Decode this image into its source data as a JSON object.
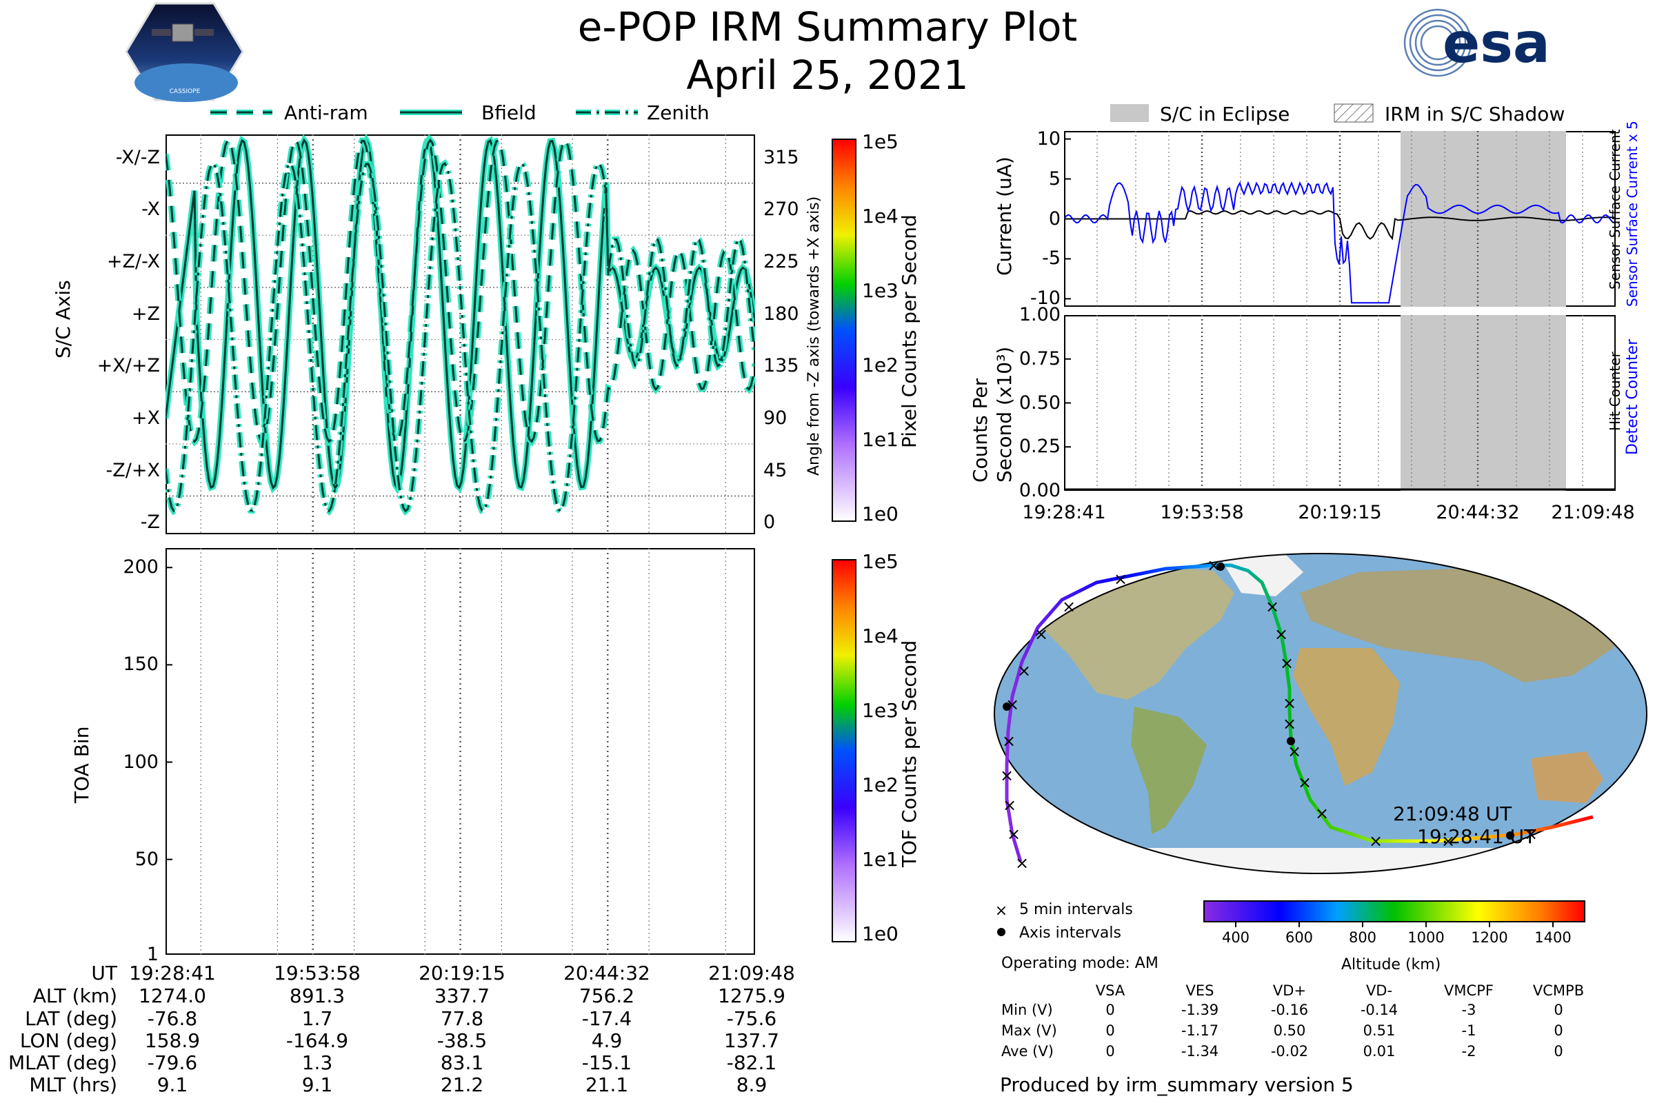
{
  "header": {
    "title": "e-POP IRM Summary Plot",
    "date": "April 25, 2021",
    "logo_badge_text": "CASSIOPE",
    "logo_esa": "esa"
  },
  "sc_axis_panel": {
    "legend": [
      {
        "label": "Anti-ram",
        "style": "dashed"
      },
      {
        "label": "Bfield",
        "style": "solid"
      },
      {
        "label": "Zenith",
        "style": "dashdot"
      }
    ],
    "ylabel": "S/C Axis",
    "y2label": "Angle from -Z axis (towards +X axis)",
    "left_ticks": [
      "-X/-Z",
      "-X",
      "+Z/-X",
      "+Z",
      "+X/+Z",
      "+X",
      "-Z/+X",
      "-Z"
    ],
    "right_ticks": [
      "315",
      "270",
      "225",
      "180",
      "135",
      "90",
      "45",
      "0"
    ],
    "colorbar_label": "Pixel Counts per Second",
    "colorbar_ticks": [
      "1e5",
      "1e4",
      "1e3",
      "1e2",
      "1e1",
      "1e0"
    ]
  },
  "toa_panel": {
    "ylabel": "TOA Bin",
    "yticks": [
      "200",
      "150",
      "100",
      "50",
      "1"
    ],
    "colorbar_label": "TOF Counts per Second",
    "colorbar_ticks": [
      "1e5",
      "1e4",
      "1e3",
      "1e2",
      "1e1",
      "1e0"
    ]
  },
  "ephemeris": {
    "row_labels": [
      "UT",
      "ALT (km)",
      "LAT (deg)",
      "LON (deg)",
      "MLAT (deg)",
      "MLT (hrs)"
    ],
    "columns": [
      [
        "19:28:41",
        "1274.0",
        "-76.8",
        "158.9",
        "-79.6",
        "9.1"
      ],
      [
        "19:53:58",
        "891.3",
        "1.7",
        "-164.9",
        "1.3",
        "9.1"
      ],
      [
        "20:19:15",
        "337.7",
        "77.8",
        "-38.5",
        "83.1",
        "21.2"
      ],
      [
        "20:44:32",
        "756.2",
        "-17.4",
        "4.9",
        "-15.1",
        "21.1"
      ],
      [
        "21:09:48",
        "1275.9",
        "-75.6",
        "137.7",
        "-82.1",
        "8.9"
      ]
    ]
  },
  "current_panel": {
    "legend": [
      {
        "label": "S/C in Eclipse"
      },
      {
        "label": "IRM in S/C Shadow"
      }
    ],
    "ylabel": "Current (uA)",
    "yticks": [
      "10",
      "5",
      "0",
      "-5",
      "-10"
    ],
    "right_label_blue": "Sensor Surface Current x 5",
    "right_label_black": "Sensor Surface Current"
  },
  "counts_panel": {
    "ylabel_line1": "Counts Per",
    "ylabel_line2": "Second (x10³)",
    "yticks": [
      "1.00",
      "0.75",
      "0.50",
      "0.25",
      "0.00"
    ],
    "right_label_blue": "Detect Counter",
    "right_label_black": "Hit Counter",
    "xticks": [
      "19:28:41",
      "19:53:58",
      "20:19:15",
      "20:44:32",
      "21:09:48"
    ]
  },
  "map_panel": {
    "end_label": "21:09:48 UT",
    "start_label": "19:28:41 UT",
    "legend": [
      {
        "label": "5 min intervals"
      },
      {
        "label": "Axis intervals"
      }
    ],
    "operating_mode": "Operating mode: AM",
    "altitude_label": "Altitude (km)",
    "altitude_ticks": [
      "400",
      "600",
      "800",
      "1000",
      "1200",
      "1400"
    ]
  },
  "voltage_table": {
    "headers": [
      "VSA",
      "VES",
      "VD+",
      "VD-",
      "VMCPF",
      "VCMPB"
    ],
    "rows": [
      {
        "label": "Min (V)",
        "values": [
          "0",
          "-1.39",
          "-0.16",
          "-0.14",
          "-3",
          "0"
        ]
      },
      {
        "label": "Max (V)",
        "values": [
          "0",
          "-1.17",
          "0.50",
          "0.51",
          "-1",
          "0"
        ]
      },
      {
        "label": "Ave (V)",
        "values": [
          "0",
          "-1.34",
          "-0.02",
          "0.01",
          "-2",
          "0"
        ]
      }
    ]
  },
  "footer": {
    "produced_by": "Produced by irm_summary version 5"
  },
  "chart_data": [
    {
      "type": "line",
      "title": "e-POP IRM Summary Plot",
      "subtitle": "April 25, 2021",
      "ylabel": "S/C Axis",
      "ylim": [
        -10,
        335
      ],
      "series": [
        {
          "name": "Anti-ram"
        },
        {
          "name": "Bfield"
        },
        {
          "name": "Zenith"
        }
      ]
    },
    {
      "type": "heatmap",
      "ylabel": "TOA Bin",
      "ylim": [
        1,
        210
      ],
      "x": [
        "19:28:41",
        "19:53:58",
        "20:19:15",
        "20:44:32",
        "21:09:48"
      ]
    },
    {
      "type": "line",
      "ylabel": "Current (uA)",
      "ylim": [
        -11,
        11
      ],
      "x": [
        "19:28:41",
        "19:53:58",
        "20:19:15",
        "20:44:32",
        "21:09:48"
      ],
      "series": [
        {
          "name": "Sensor Surface Current x 5",
          "color": "#0000ff"
        },
        {
          "name": "Sensor Surface Current",
          "color": "#000000"
        }
      ],
      "eclipse_span": [
        "20:29:00",
        "20:56:00"
      ]
    },
    {
      "type": "line",
      "ylabel": "Counts Per Second (x10³)",
      "ylim": [
        0,
        1
      ],
      "x": [
        "19:28:41",
        "19:53:58",
        "20:19:15",
        "20:44:32",
        "21:09:48"
      ],
      "series": [
        {
          "name": "Detect Counter",
          "color": "#0000ff",
          "values": [
            0,
            0,
            0,
            0,
            0
          ]
        },
        {
          "name": "Hit Counter",
          "color": "#000000",
          "values": [
            0,
            0,
            0,
            0,
            0
          ]
        }
      ]
    }
  ],
  "colors": {
    "trace": "#2ee6c0",
    "eclipse": "#c8c8c8",
    "blue": "#0000ff"
  }
}
